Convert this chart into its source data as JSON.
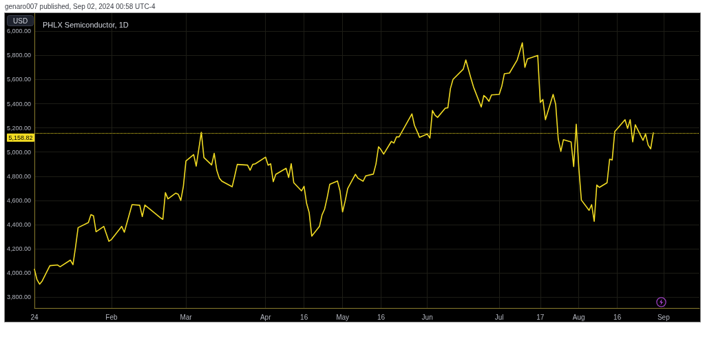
{
  "chart_data": {
    "type": "line",
    "title": "PHLX Semiconductor, 1D",
    "ylabel": "USD",
    "annotations": [
      "genaro007 published, Sep 02, 2024 00:58 UTC-4"
    ],
    "color": "#f2dc23",
    "x": [
      "2024-01-02",
      "2024-01-03",
      "2024-01-04",
      "2024-01-05",
      "2024-01-08",
      "2024-01-11",
      "2024-01-12",
      "2024-01-16",
      "2024-01-17",
      "2024-01-18",
      "2024-01-19",
      "2024-01-23",
      "2024-01-24",
      "2024-01-25",
      "2024-01-26",
      "2024-01-29",
      "2024-01-31",
      "2024-02-01",
      "2024-02-05",
      "2024-02-06",
      "2024-02-09",
      "2024-02-12",
      "2024-02-13",
      "2024-02-14",
      "2024-02-16",
      "2024-02-20",
      "2024-02-21",
      "2024-02-22",
      "2024-02-23",
      "2024-02-26",
      "2024-02-27",
      "2024-02-28",
      "2024-02-29",
      "2024-03-01",
      "2024-03-04",
      "2024-03-05",
      "2024-03-07",
      "2024-03-08",
      "2024-03-11",
      "2024-03-12",
      "2024-03-13",
      "2024-03-14",
      "2024-03-15",
      "2024-03-19",
      "2024-03-20",
      "2024-03-21",
      "2024-03-25",
      "2024-03-26",
      "2024-03-27",
      "2024-03-28",
      "2024-04-01",
      "2024-04-02",
      "2024-04-03",
      "2024-04-04",
      "2024-04-05",
      "2024-04-09",
      "2024-04-10",
      "2024-04-11",
      "2024-04-12",
      "2024-04-15",
      "2024-04-16",
      "2024-04-17",
      "2024-04-18",
      "2024-04-19",
      "2024-04-22",
      "2024-04-23",
      "2024-04-24",
      "2024-04-25",
      "2024-04-26",
      "2024-04-29",
      "2024-04-30",
      "2024-05-01",
      "2024-05-02",
      "2024-05-03",
      "2024-05-06",
      "2024-05-07",
      "2024-05-09",
      "2024-05-10",
      "2024-05-13",
      "2024-05-14",
      "2024-05-15",
      "2024-05-16",
      "2024-05-17",
      "2024-05-20",
      "2024-05-21",
      "2024-05-22",
      "2024-05-23",
      "2024-05-28",
      "2024-05-29",
      "2024-05-30",
      "2024-05-31",
      "2024-06-03",
      "2024-06-04",
      "2024-06-05",
      "2024-06-06",
      "2024-06-07",
      "2024-06-10",
      "2024-06-11",
      "2024-06-12",
      "2024-06-13",
      "2024-06-17",
      "2024-06-18",
      "2024-06-20",
      "2024-06-21",
      "2024-06-24",
      "2024-06-25",
      "2024-06-26",
      "2024-06-27",
      "2024-06-28",
      "2024-07-01",
      "2024-07-02",
      "2024-07-03",
      "2024-07-05",
      "2024-07-08",
      "2024-07-10",
      "2024-07-11",
      "2024-07-12",
      "2024-07-16",
      "2024-07-17",
      "2024-07-18",
      "2024-07-19",
      "2024-07-22",
      "2024-07-23",
      "2024-07-24",
      "2024-07-25",
      "2024-07-26",
      "2024-07-29",
      "2024-07-30",
      "2024-07-31",
      "2024-08-01",
      "2024-08-02",
      "2024-08-05",
      "2024-08-06",
      "2024-08-07",
      "2024-08-08",
      "2024-08-09",
      "2024-08-12",
      "2024-08-13",
      "2024-08-14",
      "2024-08-15",
      "2024-08-19",
      "2024-08-20",
      "2024-08-21",
      "2024-08-22",
      "2024-08-23",
      "2024-08-26",
      "2024-08-27",
      "2024-08-28",
      "2024-08-29",
      "2024-08-30"
    ],
    "values": [
      4030,
      3944,
      3907,
      3933,
      4060,
      4066,
      4051,
      4106,
      4068,
      4214,
      4375,
      4417,
      4482,
      4472,
      4341,
      4385,
      4262,
      4277,
      4385,
      4337,
      4565,
      4560,
      4467,
      4562,
      4528,
      4457,
      4444,
      4664,
      4613,
      4660,
      4651,
      4600,
      4717,
      4926,
      4979,
      4884,
      5164,
      4955,
      4894,
      4989,
      4850,
      4784,
      4759,
      4713,
      4803,
      4898,
      4892,
      4850,
      4898,
      4903,
      4958,
      4892,
      4903,
      4755,
      4816,
      4866,
      4790,
      4904,
      4746,
      4679,
      4717,
      4575,
      4499,
      4305,
      4385,
      4480,
      4528,
      4623,
      4733,
      4761,
      4679,
      4505,
      4594,
      4699,
      4816,
      4784,
      4759,
      4803,
      4818,
      4901,
      5044,
      5018,
      4983,
      5088,
      5075,
      5126,
      5126,
      5316,
      5221,
      5173,
      5122,
      5149,
      5116,
      5344,
      5306,
      5287,
      5363,
      5367,
      5525,
      5601,
      5686,
      5762,
      5610,
      5538,
      5373,
      5468,
      5449,
      5420,
      5473,
      5477,
      5544,
      5648,
      5654,
      5762,
      5904,
      5701,
      5771,
      5800,
      5411,
      5435,
      5268,
      5477,
      5395,
      5107,
      5006,
      5102,
      5084,
      4880,
      5230,
      4870,
      4603,
      4518,
      4565,
      4427,
      4727,
      4708,
      4746,
      4941,
      4935,
      5169,
      5268,
      5196,
      5268,
      5084,
      5226,
      5097,
      5150,
      5059,
      5027,
      5158.82
    ],
    "xlim": [
      "2024-01-02",
      "2024-09-17"
    ],
    "xticks": [
      {
        "value": "2024-01-02",
        "label": "24"
      },
      {
        "value": "2024-02-01",
        "label": "Feb"
      },
      {
        "value": "2024-03-01",
        "label": "Mar"
      },
      {
        "value": "2024-04-01",
        "label": "Apr"
      },
      {
        "value": "2024-04-16",
        "label": "16"
      },
      {
        "value": "2024-05-01",
        "label": "May"
      },
      {
        "value": "2024-05-16",
        "label": "16"
      },
      {
        "value": "2024-06-03",
        "label": "Jun"
      },
      {
        "value": "2024-07-01",
        "label": "Jul"
      },
      {
        "value": "2024-07-17",
        "label": "17"
      },
      {
        "value": "2024-08-01",
        "label": "Aug"
      },
      {
        "value": "2024-08-16",
        "label": "16"
      },
      {
        "value": "2024-09-03",
        "label": "Sep"
      }
    ],
    "ylim": [
      3710,
      6150
    ],
    "yticks": [
      {
        "value": 3800,
        "label": "3,800.00"
      },
      {
        "value": 4000,
        "label": "4,000.00"
      },
      {
        "value": 4200,
        "label": "4,200.00"
      },
      {
        "value": 4400,
        "label": "4,400.00"
      },
      {
        "value": 4600,
        "label": "4,600.00"
      },
      {
        "value": 4800,
        "label": "4,800.00"
      },
      {
        "value": 5000,
        "label": "5,000.00"
      },
      {
        "value": 5200,
        "label": "5,200.00"
      },
      {
        "value": 5400,
        "label": "5,400.00"
      },
      {
        "value": 5600,
        "label": "5,600.00"
      },
      {
        "value": 5800,
        "label": "5,800.00"
      },
      {
        "value": 6000,
        "label": "6,000.00"
      }
    ],
    "grid": true,
    "ref_lines": [
      {
        "axis": "y",
        "value": 5158.82,
        "label": "5,158.82",
        "color": "#f2dc23",
        "line_style": "dotted"
      }
    ]
  }
}
